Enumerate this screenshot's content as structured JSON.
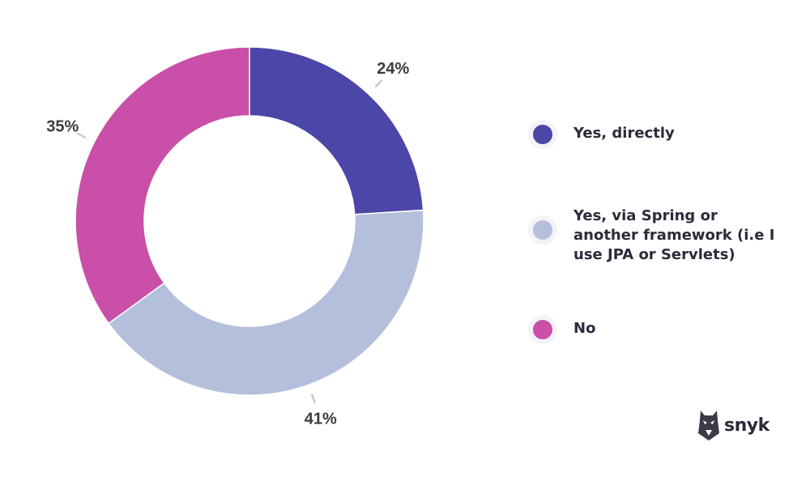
{
  "chart_data": {
    "type": "pie",
    "donut": true,
    "categories": [
      "Yes, directly",
      "Yes, via Spring or another framework (i.e I use JPA or Servlets)",
      "No"
    ],
    "values": [
      24,
      41,
      35
    ],
    "labels": [
      "24%",
      "41%",
      "35%"
    ],
    "colors": [
      "#4c46a8",
      "#b4bfdc",
      "#c94fa8"
    ],
    "title": "",
    "legend_position": "right",
    "grid": false
  },
  "legend": {
    "items": [
      {
        "label": "Yes, directly",
        "color": "#4c46a8"
      },
      {
        "label": "Yes, via Spring or another framework (i.e I use JPA or Servlets)",
        "color": "#b4bfdc"
      },
      {
        "label": "No",
        "color": "#c94fa8"
      }
    ]
  },
  "brand": {
    "text": "snyk",
    "icon": "snyk-dog-logo-icon"
  }
}
